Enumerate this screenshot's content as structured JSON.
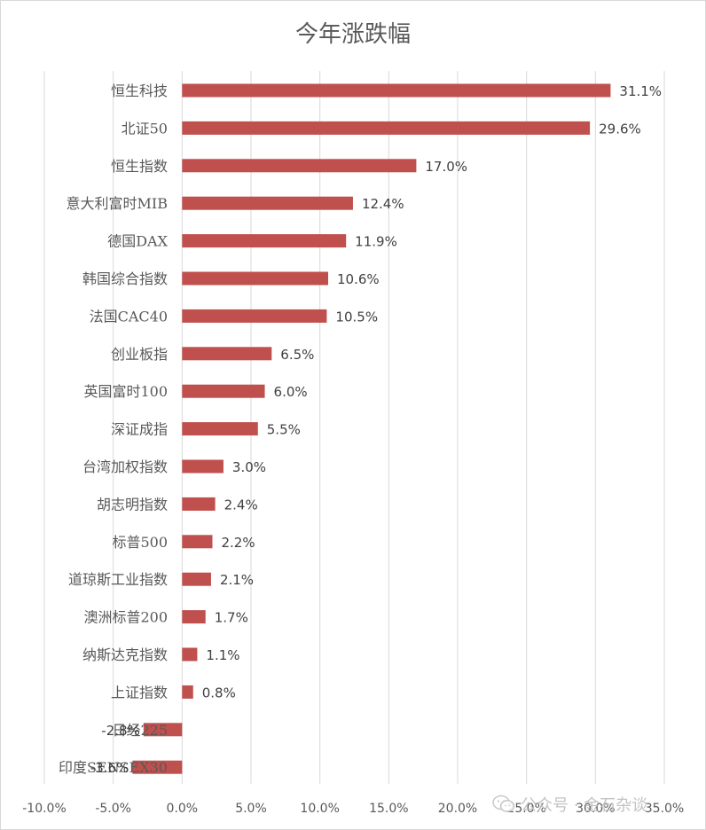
{
  "chart_data": {
    "type": "bar",
    "orientation": "horizontal",
    "title": "今年涨跌幅",
    "categories": [
      "恒生科技",
      "北证50",
      "恒生指数",
      "意大利富时MIB",
      "德国DAX",
      "韩国综合指数",
      "法国CAC40",
      "创业板指",
      "英国富时100",
      "深证成指",
      "台湾加权指数",
      "胡志明指数",
      "标普500",
      "道琼斯工业指数",
      "澳洲标普200",
      "纳斯达克指数",
      "上证指数",
      "日经225",
      "印度SENSEX30"
    ],
    "values": [
      31.1,
      29.6,
      17.0,
      12.4,
      11.9,
      10.6,
      10.5,
      6.5,
      6.0,
      5.5,
      3.0,
      2.4,
      2.2,
      2.1,
      1.7,
      1.1,
      0.8,
      -2.8,
      -3.6
    ],
    "data_labels": [
      "31.1%",
      "29.6%",
      "17.0%",
      "12.4%",
      "11.9%",
      "10.6%",
      "10.5%",
      "6.5%",
      "6.0%",
      "5.5%",
      "3.0%",
      "2.4%",
      "2.2%",
      "2.1%",
      "1.7%",
      "1.1%",
      "0.8%",
      "-2.8%",
      "-3.6%"
    ],
    "x_ticks": [
      "-10.0%",
      "-5.0%",
      "0.0%",
      "5.0%",
      "10.0%",
      "15.0%",
      "20.0%",
      "25.0%",
      "30.0%",
      "35.0%"
    ],
    "xlim": [
      -10,
      35
    ],
    "grid": "vertical",
    "legend": "none",
    "bar_color": "#C0504D"
  },
  "watermark": {
    "text": "公众号 · 金石杂谈",
    "icon": "wechat-icon"
  },
  "colors": {
    "grid": "#d9d9d9",
    "text": "#595959",
    "label": "#404040"
  }
}
